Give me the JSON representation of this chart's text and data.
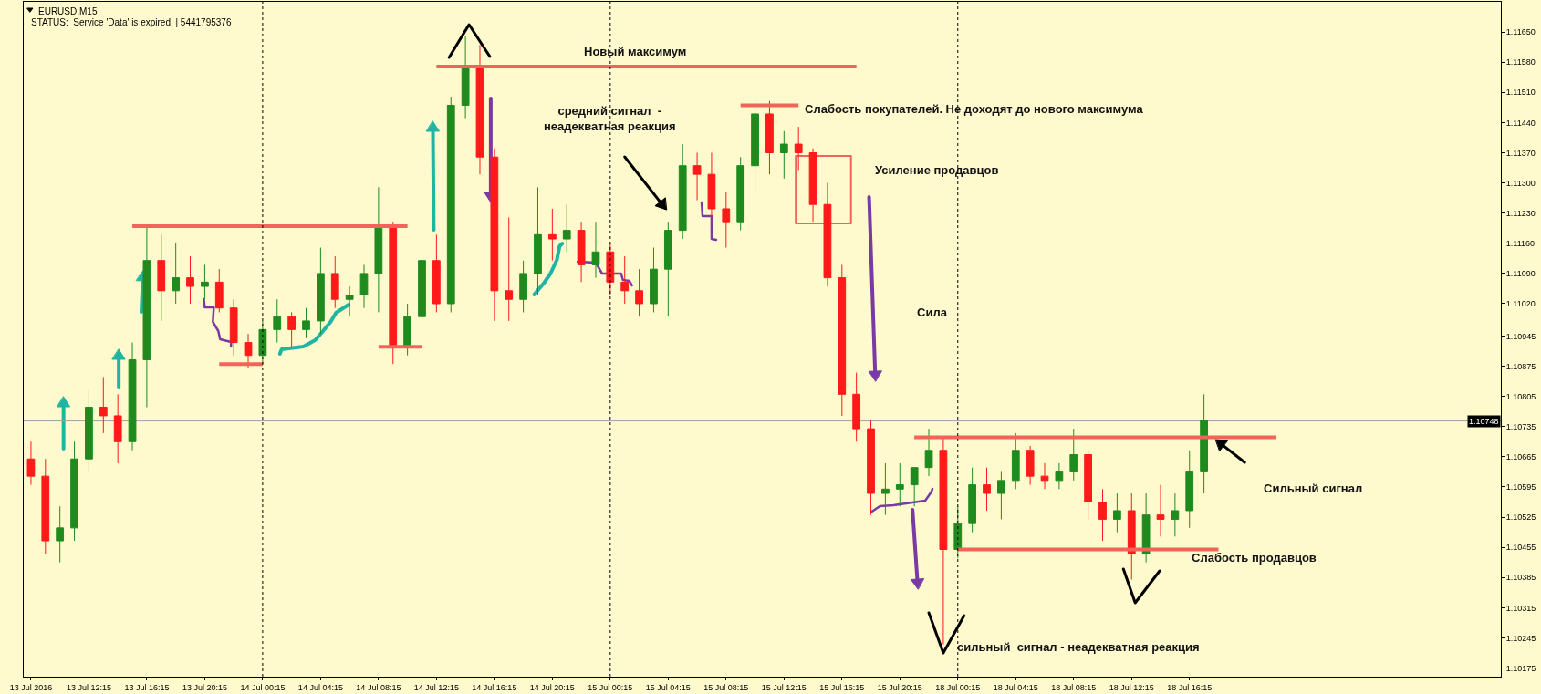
{
  "chart_data": {
    "type": "candlestick",
    "title": "EURUSD,M15",
    "subtitle": "STATUS:  Service 'Data' is expired. | 5441795376",
    "categories": [
      "13 Jul 2016",
      null,
      null,
      null,
      "13 Jul 12:15",
      null,
      null,
      null,
      "13 Jul 16:15",
      null,
      null,
      null,
      "13 Jul 20:15",
      null,
      null,
      null,
      "14 Jul 00:15",
      null,
      null,
      null,
      "14 Jul 04:15",
      null,
      null,
      null,
      "14 Jul 08:15",
      null,
      null,
      null,
      "14 Jul 12:15",
      null,
      null,
      null,
      "14 Jul 16:15",
      null,
      null,
      null,
      "14 Jul 20:15",
      null,
      null,
      null,
      "15 Jul 00:15",
      null,
      null,
      null,
      "15 Jul 04:15",
      null,
      null,
      null,
      "15 Jul 08:15",
      null,
      null,
      null,
      "15 Jul 12:15",
      null,
      null,
      null,
      "15 Jul 16:15",
      null,
      null,
      null,
      "15 Jul 20:15",
      null,
      null,
      null,
      "18 Jul 00:15",
      null,
      null,
      null,
      "18 Jul 04:15",
      null,
      null,
      null,
      "18 Jul 08:15",
      null,
      null,
      null,
      "18 Jul 12:15",
      null,
      null,
      null,
      "18 Jul 16:15",
      null,
      null,
      null,
      null,
      null,
      null,
      null,
      null,
      null,
      null,
      null,
      null,
      null,
      null,
      null,
      null,
      null,
      null,
      null,
      null,
      null
    ],
    "ohlc": [
      [
        1.1066,
        1.107,
        1.106,
        1.1062
      ],
      [
        1.1062,
        1.1066,
        1.1044,
        1.1047
      ],
      [
        1.1047,
        1.1055,
        1.1042,
        1.105
      ],
      [
        1.105,
        1.107,
        1.1047,
        1.1066
      ],
      [
        1.1066,
        1.1082,
        1.1063,
        1.1078
      ],
      [
        1.1078,
        1.1085,
        1.1072,
        1.1076
      ],
      [
        1.1076,
        1.1081,
        1.1065,
        1.107
      ],
      [
        1.107,
        1.1093,
        1.1068,
        1.1089
      ],
      [
        1.1089,
        1.112,
        1.1078,
        1.1112
      ],
      [
        1.1112,
        1.1118,
        1.1098,
        1.1105
      ],
      [
        1.1105,
        1.1116,
        1.1102,
        1.1108
      ],
      [
        1.1108,
        1.1113,
        1.1102,
        1.1106
      ],
      [
        1.1106,
        1.1111,
        1.1103,
        1.1107
      ],
      [
        1.1107,
        1.111,
        1.11,
        1.1101
      ],
      [
        1.1101,
        1.1103,
        1.109,
        1.1093
      ],
      [
        1.1093,
        1.1095,
        1.1087,
        1.109
      ],
      [
        1.109,
        1.1098,
        1.1088,
        1.1096
      ],
      [
        1.1096,
        1.1103,
        1.1093,
        1.1099
      ],
      [
        1.1099,
        1.11,
        1.1092,
        1.1096
      ],
      [
        1.1096,
        1.1101,
        1.1094,
        1.1098
      ],
      [
        1.1098,
        1.1115,
        1.1095,
        1.1109
      ],
      [
        1.1109,
        1.1113,
        1.1101,
        1.1103
      ],
      [
        1.1103,
        1.1106,
        1.1099,
        1.1104
      ],
      [
        1.1104,
        1.1111,
        1.1101,
        1.1109
      ],
      [
        1.1109,
        1.1129,
        1.11,
        1.112
      ],
      [
        1.112,
        1.1121,
        1.1088,
        1.1092
      ],
      [
        1.1092,
        1.1102,
        1.109,
        1.1099
      ],
      [
        1.1099,
        1.1118,
        1.1097,
        1.1112
      ],
      [
        1.1112,
        1.1118,
        1.11,
        1.1102
      ],
      [
        1.1102,
        1.115,
        1.11,
        1.1148
      ],
      [
        1.1148,
        1.1164,
        1.1145,
        1.1157
      ],
      [
        1.1157,
        1.1162,
        1.1132,
        1.1136
      ],
      [
        1.1136,
        1.1138,
        1.1098,
        1.1105
      ],
      [
        1.1105,
        1.1122,
        1.1098,
        1.1103
      ],
      [
        1.1103,
        1.1112,
        1.11,
        1.1109
      ],
      [
        1.1109,
        1.1129,
        1.1104,
        1.1118
      ],
      [
        1.1118,
        1.1124,
        1.1112,
        1.1117
      ],
      [
        1.1117,
        1.1125,
        1.1114,
        1.1119
      ],
      [
        1.1119,
        1.1121,
        1.1107,
        1.1111
      ],
      [
        1.1111,
        1.1121,
        1.1108,
        1.1114
      ],
      [
        1.1114,
        1.1116,
        1.1104,
        1.1107
      ],
      [
        1.1107,
        1.1113,
        1.1102,
        1.1105
      ],
      [
        1.1105,
        1.111,
        1.1099,
        1.1102
      ],
      [
        1.1102,
        1.1115,
        1.11,
        1.111
      ],
      [
        1.111,
        1.1121,
        1.1099,
        1.1119
      ],
      [
        1.1119,
        1.1139,
        1.1117,
        1.1134
      ],
      [
        1.1134,
        1.1137,
        1.1126,
        1.1132
      ],
      [
        1.1132,
        1.1137,
        1.1122,
        1.1124
      ],
      [
        1.1124,
        1.1128,
        1.1115,
        1.1121
      ],
      [
        1.1121,
        1.1136,
        1.1119,
        1.1134
      ],
      [
        1.1134,
        1.1149,
        1.1128,
        1.1146
      ],
      [
        1.1146,
        1.1149,
        1.1132,
        1.1137
      ],
      [
        1.1137,
        1.1142,
        1.1131,
        1.1139
      ],
      [
        1.1139,
        1.1143,
        1.1133,
        1.1137
      ],
      [
        1.1137,
        1.1138,
        1.1121,
        1.1125
      ],
      [
        1.1125,
        1.113,
        1.1106,
        1.1108
      ],
      [
        1.1108,
        1.1111,
        1.1076,
        1.1081
      ],
      [
        1.1081,
        1.1086,
        1.107,
        1.1073
      ],
      [
        1.1073,
        1.1075,
        1.1053,
        1.1058
      ],
      [
        1.1058,
        1.1065,
        1.1053,
        1.1059
      ],
      [
        1.1059,
        1.1065,
        1.1055,
        1.106
      ],
      [
        1.106,
        1.1064,
        1.1055,
        1.1064
      ],
      [
        1.1064,
        1.1073,
        1.1062,
        1.1068
      ],
      [
        1.1068,
        1.1071,
        1.1023,
        1.1045
      ],
      [
        1.1045,
        1.1055,
        1.1043,
        1.1051
      ],
      [
        1.1051,
        1.1064,
        1.1049,
        1.106
      ],
      [
        1.106,
        1.1064,
        1.1054,
        1.1058
      ],
      [
        1.1058,
        1.1063,
        1.1052,
        1.1061
      ],
      [
        1.1061,
        1.1072,
        1.1059,
        1.1068
      ],
      [
        1.1068,
        1.1069,
        1.106,
        1.1062
      ],
      [
        1.1062,
        1.1065,
        1.1059,
        1.1061
      ],
      [
        1.1061,
        1.1065,
        1.1059,
        1.1063
      ],
      [
        1.1063,
        1.1073,
        1.1061,
        1.1067
      ],
      [
        1.1067,
        1.1068,
        1.1052,
        1.1056
      ],
      [
        1.1056,
        1.1059,
        1.1047,
        1.1052
      ],
      [
        1.1052,
        1.1058,
        1.1049,
        1.1054
      ],
      [
        1.1054,
        1.1058,
        1.1038,
        1.1044
      ],
      [
        1.1044,
        1.1058,
        1.1042,
        1.1053
      ],
      [
        1.1053,
        1.106,
        1.1048,
        1.1052
      ],
      [
        1.1052,
        1.1058,
        1.1048,
        1.1054
      ],
      [
        1.1054,
        1.1068,
        1.105,
        1.1063
      ],
      [
        1.1063,
        1.1081,
        1.1058,
        1.1075
      ],
      null,
      null,
      null,
      null,
      null,
      null,
      null,
      null,
      null,
      null,
      null,
      null,
      null,
      null,
      null,
      null,
      null,
      null,
      null,
      null
    ],
    "series": [
      {
        "type": "line",
        "color": "#f0645a",
        "values": [
          null,
          null,
          null,
          null,
          null,
          null,
          null,
          1.112,
          1.112,
          1.112,
          1.112,
          1.112,
          1.112,
          1.112,
          1.112,
          1.112,
          1.112,
          1.112,
          1.112,
          1.112,
          1.112,
          1.112,
          1.112,
          1.112,
          1.112,
          1.112,
          1.112,
          null,
          null,
          null,
          null,
          null,
          null,
          null,
          null,
          null,
          null,
          null,
          null,
          null,
          null,
          null,
          null,
          null,
          null,
          null,
          null,
          null,
          null,
          null,
          null,
          null,
          null,
          null,
          null,
          null,
          null,
          null,
          null,
          null,
          null,
          null,
          null,
          null,
          null,
          null,
          null,
          null,
          null,
          null,
          null,
          null,
          null,
          null,
          null,
          null,
          null,
          null,
          null,
          null,
          null,
          null,
          null,
          null,
          null,
          null,
          null,
          null,
          null,
          null,
          null,
          null,
          null,
          null,
          null,
          null,
          null,
          null,
          null,
          null,
          null,
          null
        ]
      },
      {
        "type": "line",
        "color": "#f0645a",
        "values": [
          null,
          null,
          null,
          null,
          null,
          null,
          null,
          null,
          null,
          null,
          null,
          null,
          null,
          1.1088,
          1.1088,
          1.1088,
          1.1088,
          null,
          null,
          null,
          null,
          null,
          null,
          null,
          null,
          null,
          null,
          null,
          null,
          null,
          null,
          null,
          null,
          null,
          null,
          null,
          null,
          null,
          null,
          null,
          null,
          null,
          null,
          null,
          null,
          null,
          null,
          null,
          null,
          null,
          null,
          null,
          null,
          null,
          null,
          null,
          null,
          null,
          null,
          null,
          null,
          null,
          null,
          null,
          null,
          null,
          null,
          null,
          null,
          null,
          null,
          null,
          null,
          null,
          null,
          null,
          null,
          null,
          null,
          null,
          null,
          null,
          null,
          null,
          null,
          null,
          null,
          null,
          null,
          null,
          null,
          null,
          null,
          null,
          null,
          null,
          null,
          null,
          null,
          null,
          null,
          null
        ]
      },
      {
        "type": "line",
        "color": "#f0645a",
        "values": [
          null,
          null,
          null,
          null,
          null,
          null,
          null,
          null,
          null,
          null,
          null,
          null,
          null,
          null,
          null,
          null,
          null,
          null,
          null,
          null,
          null,
          null,
          null,
          null,
          1.1092,
          1.1092,
          1.1092,
          1.1092,
          null,
          null,
          null,
          null,
          null,
          null,
          null,
          null,
          null,
          null,
          null,
          null,
          null,
          null,
          null,
          null,
          null,
          null,
          null,
          null,
          null,
          null,
          null,
          null,
          null,
          null,
          null,
          null,
          null,
          null,
          null,
          null,
          null,
          null,
          null,
          null,
          null,
          null,
          null,
          null,
          null,
          null,
          null,
          null,
          null,
          null,
          null,
          null,
          null,
          null,
          null,
          null,
          null,
          null,
          null,
          null,
          null,
          null,
          null,
          null,
          null,
          null,
          null,
          null,
          null,
          null,
          null,
          null,
          null,
          null,
          null,
          null,
          null,
          null
        ]
      },
      {
        "type": "line",
        "color": "#f0645a",
        "values": [
          null,
          null,
          null,
          null,
          null,
          null,
          null,
          null,
          null,
          null,
          null,
          null,
          null,
          null,
          null,
          null,
          null,
          null,
          null,
          null,
          null,
          null,
          null,
          null,
          null,
          null,
          null,
          null,
          1.1157,
          1.1157,
          1.1157,
          1.1157,
          1.1157,
          1.1157,
          1.1157,
          1.1157,
          1.1157,
          1.1157,
          1.1157,
          1.1157,
          1.1157,
          1.1157,
          1.1157,
          1.1157,
          1.1157,
          1.1157,
          1.1157,
          1.1157,
          1.1157,
          1.1157,
          1.1157,
          1.1157,
          1.1157,
          1.1157,
          1.1157,
          1.1157,
          1.1157,
          1.1157,
          null,
          null,
          null,
          null,
          null,
          null,
          null,
          null,
          null,
          null,
          null,
          null,
          null,
          null,
          null,
          null,
          null,
          null,
          null,
          null,
          null,
          null,
          null,
          null,
          null,
          null,
          null,
          null,
          null,
          null,
          null,
          null,
          null,
          null,
          null,
          null,
          null,
          null,
          null,
          null,
          null,
          null,
          null,
          null
        ]
      },
      {
        "type": "line",
        "color": "#f0645a",
        "values": [
          null,
          null,
          null,
          null,
          null,
          null,
          null,
          null,
          null,
          null,
          null,
          null,
          null,
          null,
          null,
          null,
          null,
          null,
          null,
          null,
          null,
          null,
          null,
          null,
          null,
          null,
          null,
          null,
          null,
          null,
          null,
          null,
          null,
          null,
          null,
          null,
          null,
          null,
          null,
          null,
          null,
          null,
          null,
          null,
          null,
          null,
          null,
          null,
          null,
          1.1148,
          1.1148,
          1.1148,
          1.1148,
          1.1148,
          null,
          null,
          null,
          null,
          null,
          null,
          null,
          null,
          null,
          null,
          null,
          null,
          null,
          null,
          null,
          null,
          null,
          null,
          null,
          null,
          null,
          null,
          null,
          null,
          null,
          null,
          null,
          null,
          null,
          null,
          null,
          null,
          null,
          null,
          null,
          null,
          null,
          null,
          null,
          null,
          null,
          null,
          null,
          null,
          null,
          null,
          null,
          null
        ]
      },
      {
        "type": "line",
        "color": "#f0645a",
        "values": [
          null,
          null,
          null,
          null,
          null,
          null,
          null,
          null,
          null,
          null,
          null,
          null,
          null,
          null,
          null,
          null,
          null,
          null,
          null,
          null,
          null,
          null,
          null,
          null,
          null,
          null,
          null,
          null,
          null,
          null,
          null,
          null,
          null,
          null,
          null,
          null,
          null,
          null,
          null,
          null,
          null,
          null,
          null,
          null,
          null,
          null,
          null,
          null,
          null,
          null,
          null,
          null,
          null,
          null,
          null,
          null,
          null,
          null,
          null,
          null,
          null,
          1.1071,
          1.1071,
          1.1071,
          1.1071,
          1.1071,
          1.1071,
          1.1071,
          1.1071,
          1.1071,
          1.1071,
          1.1071,
          1.1071,
          1.1071,
          1.1071,
          1.1071,
          1.1071,
          1.1071,
          1.1071,
          1.1071,
          1.1071,
          1.1071,
          1.1071,
          1.1071,
          1.1071,
          1.1071,
          1.1071,
          null,
          null,
          null,
          null,
          null,
          null,
          null,
          null,
          null,
          null,
          null,
          null,
          null,
          null,
          null
        ]
      },
      {
        "type": "line",
        "color": "#f0645a",
        "values": [
          null,
          null,
          null,
          null,
          null,
          null,
          null,
          null,
          null,
          null,
          null,
          null,
          null,
          null,
          null,
          null,
          null,
          null,
          null,
          null,
          null,
          null,
          null,
          null,
          null,
          null,
          null,
          null,
          null,
          null,
          null,
          null,
          null,
          null,
          null,
          null,
          null,
          null,
          null,
          null,
          null,
          null,
          null,
          null,
          null,
          null,
          null,
          null,
          null,
          null,
          null,
          null,
          null,
          null,
          null,
          null,
          null,
          null,
          null,
          null,
          null,
          null,
          null,
          null,
          1.1045,
          1.1045,
          1.1045,
          1.1045,
          1.1045,
          1.1045,
          1.1045,
          1.1045,
          1.1045,
          1.1045,
          1.1045,
          1.1045,
          1.1045,
          1.1045,
          1.1045,
          1.1045,
          1.1045,
          1.1045,
          1.1045,
          null,
          null,
          null,
          null,
          null,
          null,
          null,
          null,
          null,
          null,
          null,
          null,
          null,
          null,
          null,
          null,
          null,
          null,
          null
        ]
      }
    ],
    "ylim": [
      1.10155,
      1.1172
    ],
    "yticks": [
      {
        "value": 1.1165,
        "label": "1.11650"
      },
      {
        "value": 1.1158,
        "label": "1.11580"
      },
      {
        "value": 1.1151,
        "label": "1.11510"
      },
      {
        "value": 1.1144,
        "label": "1.11440"
      },
      {
        "value": 1.1137,
        "label": "1.11370"
      },
      {
        "value": 1.113,
        "label": "1.11300"
      },
      {
        "value": 1.1123,
        "label": "1.11230"
      },
      {
        "value": 1.1116,
        "label": "1.11160"
      },
      {
        "value": 1.1109,
        "label": "1.11090"
      },
      {
        "value": 1.1102,
        "label": "1.11020"
      },
      {
        "value": 1.10945,
        "label": "1.10945"
      },
      {
        "value": 1.10875,
        "label": "1.10875"
      },
      {
        "value": 1.10805,
        "label": "1.10805"
      },
      {
        "value": 1.10735,
        "label": "1.10735"
      },
      {
        "value": 1.10665,
        "label": "1.10665"
      },
      {
        "value": 1.10595,
        "label": "1.10595"
      },
      {
        "value": 1.10525,
        "label": "1.10525"
      },
      {
        "value": 1.10455,
        "label": "1.10455"
      },
      {
        "value": 1.10385,
        "label": "1.10385"
      },
      {
        "value": 1.10315,
        "label": "1.10315"
      },
      {
        "value": 1.10245,
        "label": "1.10245"
      },
      {
        "value": 1.10175,
        "label": "1.10175"
      }
    ],
    "ref_lines": [
      {
        "axis": "y",
        "value": 1.10748,
        "label": "1.10748",
        "color": "#a0a0a0"
      },
      {
        "axis": "x",
        "value": "14 Jul 00:15",
        "line_style": "dashed",
        "color": "#000000"
      },
      {
        "axis": "x",
        "value": "15 Jul 00:15",
        "line_style": "dashed",
        "color": "#000000"
      },
      {
        "axis": "x",
        "value": "18 Jul 00:15",
        "line_style": "dashed",
        "color": "#000000"
      }
    ],
    "annotations": [
      "Новый максимум",
      "средний сигнал  -\nнеадекватная реакция",
      "Слабость покупателей. Не доходят до нового максимума",
      "Усиление продавцов",
      "Сила",
      "сильный  сигнал - неадекватная реакция",
      "Сильный сигнал",
      "Слабость продавцов"
    ]
  }
}
